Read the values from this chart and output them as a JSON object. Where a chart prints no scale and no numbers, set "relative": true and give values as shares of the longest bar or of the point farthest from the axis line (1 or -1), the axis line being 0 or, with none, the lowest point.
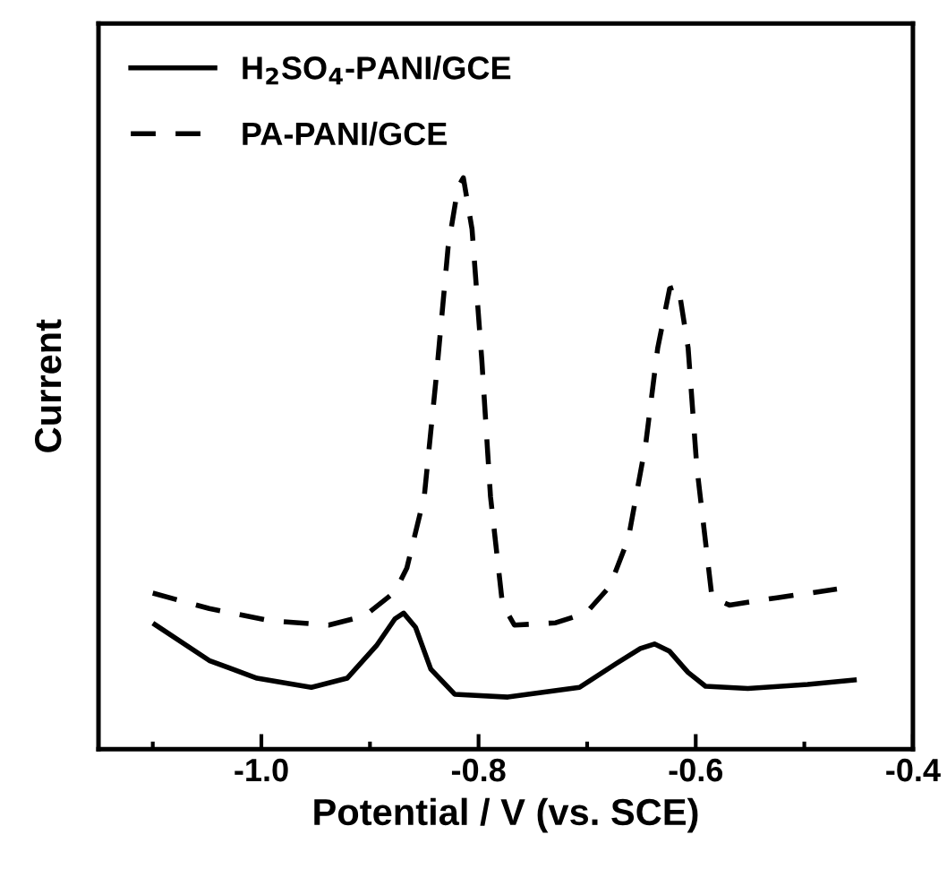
{
  "chart_data": {
    "type": "line",
    "relative": true,
    "xlabel": "Potential / V (vs. SCE)",
    "ylabel": "Current",
    "xlim": [
      -1.15,
      -0.4
    ],
    "xticks": [
      {
        "value": -1.0,
        "label": "-1.0"
      },
      {
        "value": -0.8,
        "label": "-0.8"
      },
      {
        "value": -0.6,
        "label": "-0.6"
      },
      {
        "value": -0.4,
        "label": "-0.4"
      }
    ],
    "legend": "top left",
    "grid": false,
    "series": [
      {
        "name": "H$_{2}$SO$_{4}$-PANI/GCE",
        "color": "#000000",
        "line_style": "solid",
        "x": [
          -1.098,
          -1.048,
          -1.004,
          -0.954,
          -0.921,
          -0.894,
          -0.877,
          -0.869,
          -0.858,
          -0.844,
          -0.822,
          -0.773,
          -0.707,
          -0.673,
          -0.651,
          -0.638,
          -0.624,
          -0.607,
          -0.591,
          -0.552,
          -0.497,
          -0.454
        ],
        "values": [
          0.218,
          0.155,
          0.124,
          0.108,
          0.124,
          0.181,
          0.228,
          0.238,
          0.213,
          0.14,
          0.096,
          0.091,
          0.108,
          0.15,
          0.176,
          0.184,
          0.171,
          0.134,
          0.11,
          0.106,
          0.113,
          0.121
        ]
      },
      {
        "name": "PA-PANI/GCE",
        "color": "#000000",
        "line_style": "dashed",
        "x": [
          -1.1,
          -1.048,
          -0.993,
          -0.938,
          -0.905,
          -0.877,
          -0.866,
          -0.85,
          -0.839,
          -0.828,
          -0.819,
          -0.814,
          -0.806,
          -0.797,
          -0.789,
          -0.778,
          -0.767,
          -0.729,
          -0.701,
          -0.679,
          -0.662,
          -0.646,
          -0.635,
          -0.624,
          -0.616,
          -0.607,
          -0.599,
          -0.585,
          -0.569,
          -0.525,
          -0.47
        ],
        "values": [
          0.273,
          0.246,
          0.225,
          0.217,
          0.233,
          0.275,
          0.317,
          0.442,
          0.65,
          0.879,
          0.983,
          1,
          0.91,
          0.681,
          0.442,
          0.254,
          0.217,
          0.221,
          0.238,
          0.285,
          0.369,
          0.535,
          0.702,
          0.806,
          0.811,
          0.702,
          0.494,
          0.265,
          0.252,
          0.265,
          0.28
        ]
      }
    ]
  }
}
